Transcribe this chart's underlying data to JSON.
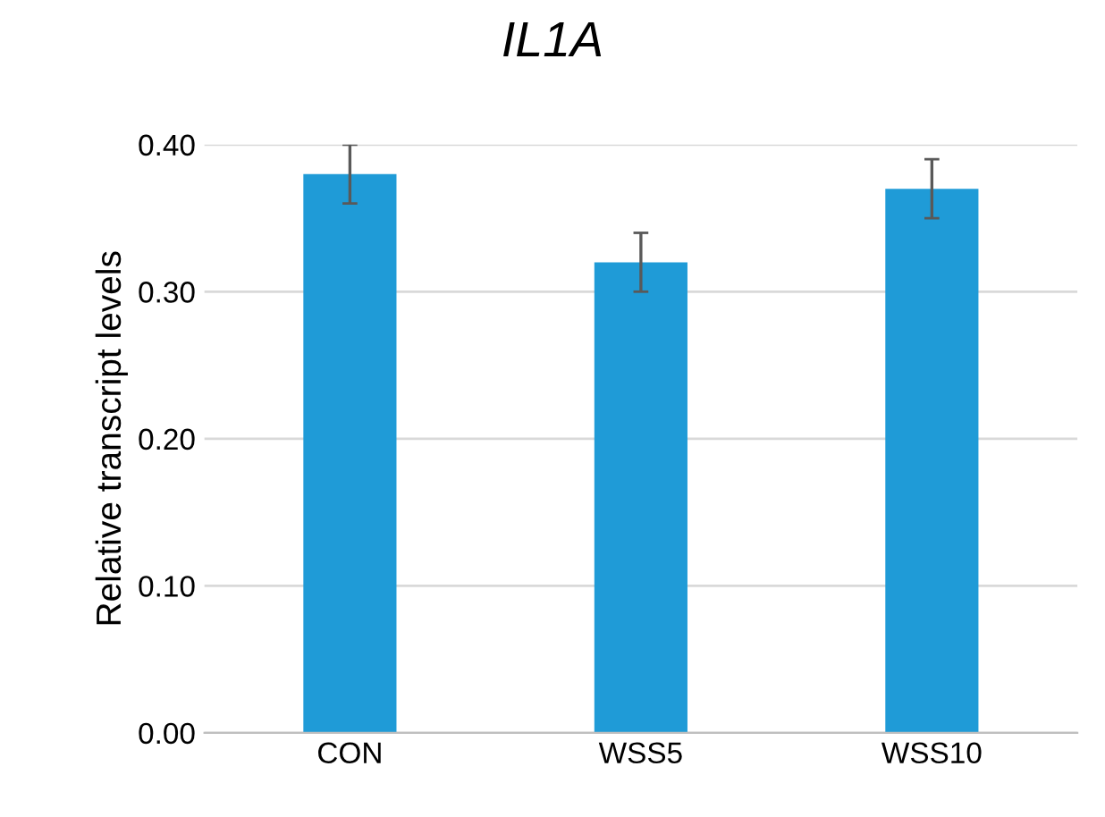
{
  "chart_data": {
    "type": "bar",
    "title": "IL1A",
    "ylabel": "Relative transcript levels",
    "categories": [
      "CON",
      "WSS5",
      "WSS10"
    ],
    "values": [
      0.38,
      0.32,
      0.37
    ],
    "errors": [
      0.02,
      0.02,
      0.02
    ],
    "color": "#1f9bd7",
    "ylim": [
      0,
      0.4
    ],
    "yticks": [
      {
        "value": 0,
        "label": "0.00"
      },
      {
        "value": 0.1,
        "label": "0.10"
      },
      {
        "value": 0.2,
        "label": "0.20"
      },
      {
        "value": 0.3,
        "label": "0.30"
      },
      {
        "value": 0.4,
        "label": "0.40"
      }
    ],
    "grid": "y"
  }
}
